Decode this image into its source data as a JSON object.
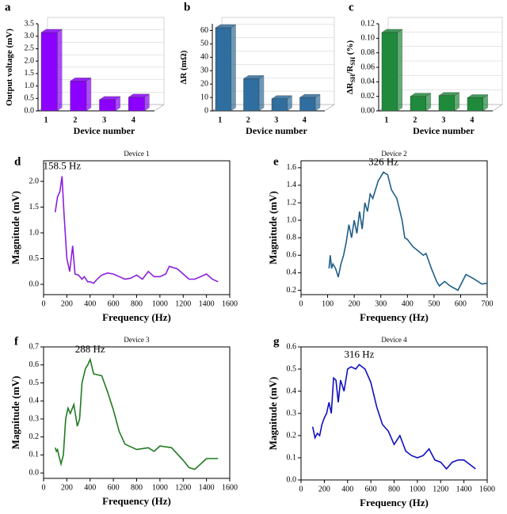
{
  "chart_data": [
    {
      "type": "bar3d",
      "panel": "a",
      "ylabel": [
        "Output voltage (mV)"
      ],
      "xlabel": "Device number",
      "categories": [
        "1",
        "2",
        "3",
        "4"
      ],
      "values": [
        3.15,
        1.2,
        0.45,
        0.55
      ],
      "color": "#8b00ff",
      "ylim": [
        0,
        3.5
      ],
      "yticks": [
        {
          "value": 0,
          "label": "0.0"
        },
        0.5,
        {
          "value": 1,
          "label": "1.0"
        },
        1.5,
        {
          "value": 2,
          "label": "2.0"
        },
        2.5,
        {
          "value": 3,
          "label": "3.0"
        },
        3.5
      ]
    },
    {
      "type": "bar3d",
      "panel": "b",
      "ylabel": [
        "ΔR (mΩ)"
      ],
      "xlabel": "Device number",
      "categories": [
        "1",
        "2",
        "3",
        "4"
      ],
      "values": [
        62,
        24,
        9,
        10
      ],
      "color": "#2f6e9e",
      "ylim": [
        0,
        65
      ],
      "yticks": [
        0,
        10,
        20,
        30,
        40,
        50,
        60
      ]
    },
    {
      "type": "bar3d",
      "panel": "c",
      "ylabel": [
        "ΔR",
        "SH",
        "/R",
        "SH",
        " (%)"
      ],
      "xlabel": "Device number",
      "categories": [
        "1",
        "2",
        "3",
        "4"
      ],
      "values": [
        0.108,
        0.02,
        0.021,
        0.018
      ],
      "color": "#1f8a3c",
      "ylim": [
        0,
        0.12
      ],
      "yticks": [
        {
          "value": 0,
          "label": "0.00"
        },
        {
          "value": 0.02,
          "label": "0.02"
        },
        {
          "value": 0.04,
          "label": "0.04"
        },
        {
          "value": 0.06,
          "label": "0.06"
        },
        {
          "value": 0.08,
          "label": "0.08"
        },
        {
          "value": 0.1,
          "label": "0.10"
        },
        {
          "value": 0.12,
          "label": "0.12"
        }
      ]
    },
    {
      "type": "line",
      "panel": "d",
      "title": "Device 1",
      "annotation": "158.5 Hz",
      "xlabel": "Frequency (Hz)",
      "ylabel": [
        "Magnitude (mV)"
      ],
      "color": "#8a1fe0",
      "x": [
        100,
        120,
        140,
        158.5,
        175,
        200,
        225,
        250,
        270,
        300,
        330,
        350,
        380,
        400,
        430,
        460,
        500,
        550,
        600,
        650,
        700,
        750,
        800,
        850,
        900,
        950,
        1000,
        1050,
        1080,
        1150,
        1200,
        1250,
        1300,
        1350,
        1400,
        1450,
        1500
      ],
      "values": [
        1.4,
        1.7,
        1.8,
        2.1,
        1.4,
        0.5,
        0.25,
        0.75,
        0.2,
        0.18,
        0.1,
        0.15,
        0.05,
        0.05,
        0.02,
        0.1,
        0.18,
        0.22,
        0.2,
        0.15,
        0.1,
        0.12,
        0.18,
        0.1,
        0.25,
        0.15,
        0.15,
        0.2,
        0.35,
        0.3,
        0.2,
        0.1,
        0.1,
        0.15,
        0.2,
        0.1,
        0.05
      ],
      "xlim": [
        0,
        1600
      ],
      "xticks": [
        0,
        200,
        400,
        600,
        800,
        1000,
        1200,
        1400,
        1600
      ],
      "ylim": [
        -0.2,
        2.4
      ],
      "yticks": [
        {
          "value": 0,
          "label": "0.0"
        },
        0.5,
        {
          "value": 1,
          "label": "1.0"
        },
        1.5,
        {
          "value": 2,
          "label": "2.0"
        }
      ]
    },
    {
      "type": "line",
      "panel": "e",
      "title": "Device 2",
      "annotation": "326 Hz",
      "xlabel": "Frequency (Hz)",
      "ylabel": [
        "Magnitude (mV)"
      ],
      "color": "#1f5f8a",
      "x": [
        105,
        110,
        115,
        120,
        130,
        140,
        150,
        160,
        170,
        180,
        190,
        200,
        210,
        220,
        230,
        240,
        250,
        260,
        270,
        290,
        310,
        326,
        340,
        360,
        380,
        390,
        400,
        420,
        440,
        460,
        470,
        490,
        510,
        520,
        540,
        560,
        590,
        620,
        650,
        680,
        700
      ],
      "values": [
        0.45,
        0.6,
        0.45,
        0.5,
        0.45,
        0.35,
        0.5,
        0.6,
        0.75,
        0.95,
        0.8,
        1.0,
        0.85,
        1.1,
        0.9,
        1.2,
        1.1,
        1.3,
        1.25,
        1.45,
        1.55,
        1.52,
        1.35,
        1.25,
        1.0,
        0.8,
        0.78,
        0.7,
        0.65,
        0.6,
        0.62,
        0.45,
        0.3,
        0.25,
        0.3,
        0.25,
        0.2,
        0.38,
        0.33,
        0.27,
        0.28
      ],
      "xlim": [
        0,
        700
      ],
      "xticks": [
        0,
        100,
        200,
        300,
        400,
        500,
        600,
        700
      ],
      "ylim": [
        0.15,
        1.68
      ],
      "yticks": [
        0.2,
        0.4,
        0.6,
        0.8,
        {
          "value": 1,
          "label": "1.0"
        },
        1.2,
        1.4,
        1.6
      ]
    },
    {
      "type": "line",
      "panel": "f",
      "title": "Device 3",
      "annotation": "288 Hz",
      "xlabel": "Frequency (Hz)",
      "ylabel": [
        "Magnitude (mV)"
      ],
      "color": "#1f7a1f",
      "x": [
        100,
        110,
        120,
        130,
        150,
        170,
        190,
        210,
        230,
        260,
        290,
        310,
        330,
        360,
        380,
        400,
        430,
        500,
        550,
        600,
        650,
        700,
        800,
        900,
        950,
        1000,
        1100,
        1200,
        1250,
        1300,
        1350,
        1400,
        1500
      ],
      "values": [
        0.14,
        0.12,
        0.13,
        0.1,
        0.05,
        0.1,
        0.3,
        0.36,
        0.33,
        0.38,
        0.26,
        0.3,
        0.5,
        0.58,
        0.6,
        0.63,
        0.55,
        0.54,
        0.45,
        0.35,
        0.23,
        0.16,
        0.13,
        0.14,
        0.12,
        0.15,
        0.14,
        0.07,
        0.03,
        0.02,
        0.05,
        0.08,
        0.08
      ],
      "xlim": [
        0,
        1600
      ],
      "xticks": [
        0,
        200,
        400,
        600,
        800,
        1000,
        1200,
        1400,
        1600
      ],
      "ylim": [
        -0.03,
        0.7
      ],
      "yticks": [
        {
          "value": 0,
          "label": "0.0"
        },
        0.1,
        0.2,
        0.3,
        0.4,
        0.5,
        0.6,
        0.7
      ]
    },
    {
      "type": "line",
      "panel": "g",
      "title": "Device 4",
      "annotation": "316 Hz",
      "xlabel": "Frequency (Hz)",
      "ylabel": [
        "Magnitude (mV)"
      ],
      "color": "#1010c0",
      "x": [
        100,
        120,
        140,
        160,
        180,
        200,
        220,
        240,
        260,
        280,
        300,
        320,
        340,
        370,
        400,
        430,
        470,
        500,
        550,
        600,
        650,
        700,
        750,
        800,
        850,
        900,
        950,
        1000,
        1050,
        1100,
        1150,
        1200,
        1250,
        1300,
        1350,
        1400,
        1450,
        1500
      ],
      "values": [
        0.24,
        0.19,
        0.21,
        0.2,
        0.25,
        0.28,
        0.3,
        0.35,
        0.3,
        0.46,
        0.45,
        0.35,
        0.45,
        0.4,
        0.5,
        0.51,
        0.5,
        0.52,
        0.5,
        0.44,
        0.33,
        0.25,
        0.22,
        0.16,
        0.2,
        0.13,
        0.11,
        0.1,
        0.11,
        0.14,
        0.09,
        0.08,
        0.05,
        0.08,
        0.09,
        0.09,
        0.07,
        0.05
      ],
      "xlim": [
        0,
        1600
      ],
      "xticks": [
        0,
        200,
        400,
        600,
        800,
        1000,
        1200,
        1400,
        1600
      ],
      "ylim": [
        0,
        0.6
      ],
      "yticks": [
        {
          "value": 0,
          "label": "0.0"
        },
        0.1,
        0.2,
        0.3,
        0.4,
        0.5,
        0.6
      ]
    }
  ]
}
